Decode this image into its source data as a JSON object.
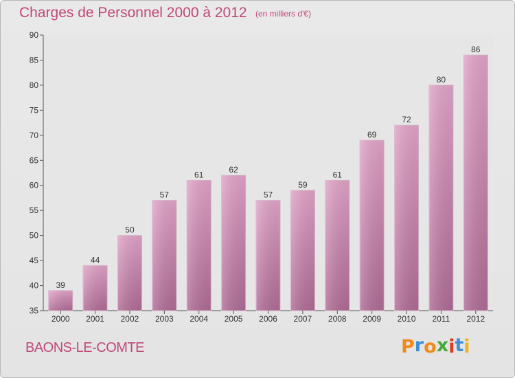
{
  "header": {
    "title": "Charges de Personnel 2000 à 2012",
    "subtitle": "(en milliers d'€)"
  },
  "footer": {
    "place": "BAONS-LE-COMTE",
    "brand": "Proxiti"
  },
  "colors": {
    "title": "#c0487a",
    "bar_top": "#e2a4c9",
    "bar_bottom": "#b06c96",
    "brand_letters": [
      "#f08a1c",
      "#3d8fd6",
      "#f08a1c",
      "#4aa839",
      "#e23a25",
      "#3d8fd6",
      "#f2b21b"
    ]
  },
  "chart_data": {
    "type": "bar",
    "title": "Charges de Personnel 2000 à 2012",
    "subtitle": "(en milliers d'€)",
    "xlabel": "",
    "ylabel": "",
    "categories": [
      "2000",
      "2001",
      "2002",
      "2003",
      "2004",
      "2005",
      "2006",
      "2007",
      "2008",
      "2009",
      "2010",
      "2011",
      "2012"
    ],
    "values": [
      39,
      44,
      50,
      57,
      61,
      62,
      57,
      59,
      61,
      69,
      72,
      80,
      86
    ],
    "ylim": [
      35,
      90
    ],
    "yticks": [
      35,
      40,
      45,
      50,
      55,
      60,
      65,
      70,
      75,
      80,
      85,
      90
    ],
    "data_labels": true,
    "grid": false,
    "legend": "none"
  }
}
